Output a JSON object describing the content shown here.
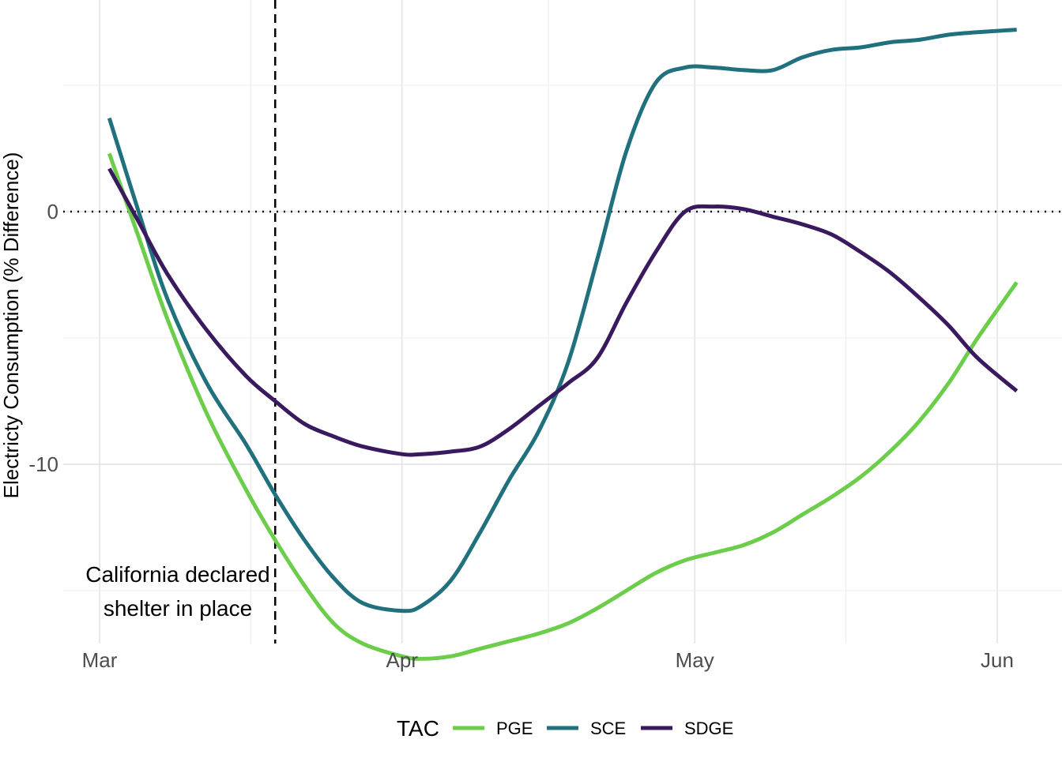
{
  "chart_data": {
    "type": "line",
    "title": "",
    "xlabel": "",
    "ylabel": "Electricty Consumption (% Difference)",
    "x_ticks": [
      "Mar",
      "Apr",
      "May",
      "Jun"
    ],
    "y_ticks": [
      0,
      -10
    ],
    "xlim": [
      "2020-03-01",
      "2020-06-04"
    ],
    "ylim": [
      -17,
      8.3
    ],
    "grid": true,
    "legend": {
      "position": "bottom",
      "title": "TAC"
    },
    "reference_lines": [
      {
        "kind": "horizontal",
        "y": 0,
        "style": "dotted"
      },
      {
        "kind": "vertical",
        "x": "2020-03-19",
        "style": "dashed"
      }
    ],
    "annotations": [
      {
        "lines": [
          "California declared",
          "shelter in place"
        ],
        "x": "2020-03-19",
        "y": -15.5
      }
    ],
    "x": [
      "2020-03-02",
      "2020-03-05",
      "2020-03-08",
      "2020-03-12",
      "2020-03-16",
      "2020-03-19",
      "2020-03-22",
      "2020-03-25",
      "2020-03-28",
      "2020-04-01",
      "2020-04-03",
      "2020-04-06",
      "2020-04-09",
      "2020-04-12",
      "2020-04-15",
      "2020-04-18",
      "2020-04-21",
      "2020-04-24",
      "2020-04-27",
      "2020-04-30",
      "2020-05-03",
      "2020-05-06",
      "2020-05-09",
      "2020-05-12",
      "2020-05-15",
      "2020-05-18",
      "2020-05-21",
      "2020-05-24",
      "2020-05-27",
      "2020-05-30",
      "2020-06-03"
    ],
    "series": [
      {
        "name": "PGE",
        "color": "#6ccd4a",
        "values": [
          2.3,
          -1.0,
          -4.3,
          -8.0,
          -11.0,
          -13.0,
          -14.8,
          -16.3,
          -17.1,
          -17.6,
          -17.7,
          -17.6,
          -17.3,
          -17.0,
          -16.7,
          -16.3,
          -15.7,
          -15.0,
          -14.3,
          -13.8,
          -13.5,
          -13.2,
          -12.7,
          -12.0,
          -11.3,
          -10.5,
          -9.5,
          -8.3,
          -6.8,
          -5.0,
          -2.8
        ]
      },
      {
        "name": "SCE",
        "color": "#21707e",
        "values": [
          3.7,
          0.0,
          -3.5,
          -6.8,
          -9.2,
          -11.2,
          -13.0,
          -14.5,
          -15.5,
          -15.8,
          -15.6,
          -14.6,
          -12.7,
          -10.6,
          -8.7,
          -6.0,
          -1.9,
          2.4,
          5.1,
          5.7,
          5.7,
          5.6,
          5.6,
          6.1,
          6.4,
          6.5,
          6.7,
          6.8,
          7.0,
          7.1,
          7.2
        ]
      },
      {
        "name": "SDGE",
        "color": "#3a1a5e",
        "values": [
          1.7,
          -0.4,
          -2.5,
          -4.7,
          -6.5,
          -7.5,
          -8.4,
          -8.9,
          -9.3,
          -9.6,
          -9.6,
          -9.5,
          -9.3,
          -8.6,
          -7.7,
          -6.8,
          -5.8,
          -3.6,
          -1.6,
          0.0,
          0.2,
          0.1,
          -0.2,
          -0.5,
          -0.9,
          -1.6,
          -2.4,
          -3.4,
          -4.5,
          -5.8,
          -7.1
        ]
      }
    ]
  }
}
